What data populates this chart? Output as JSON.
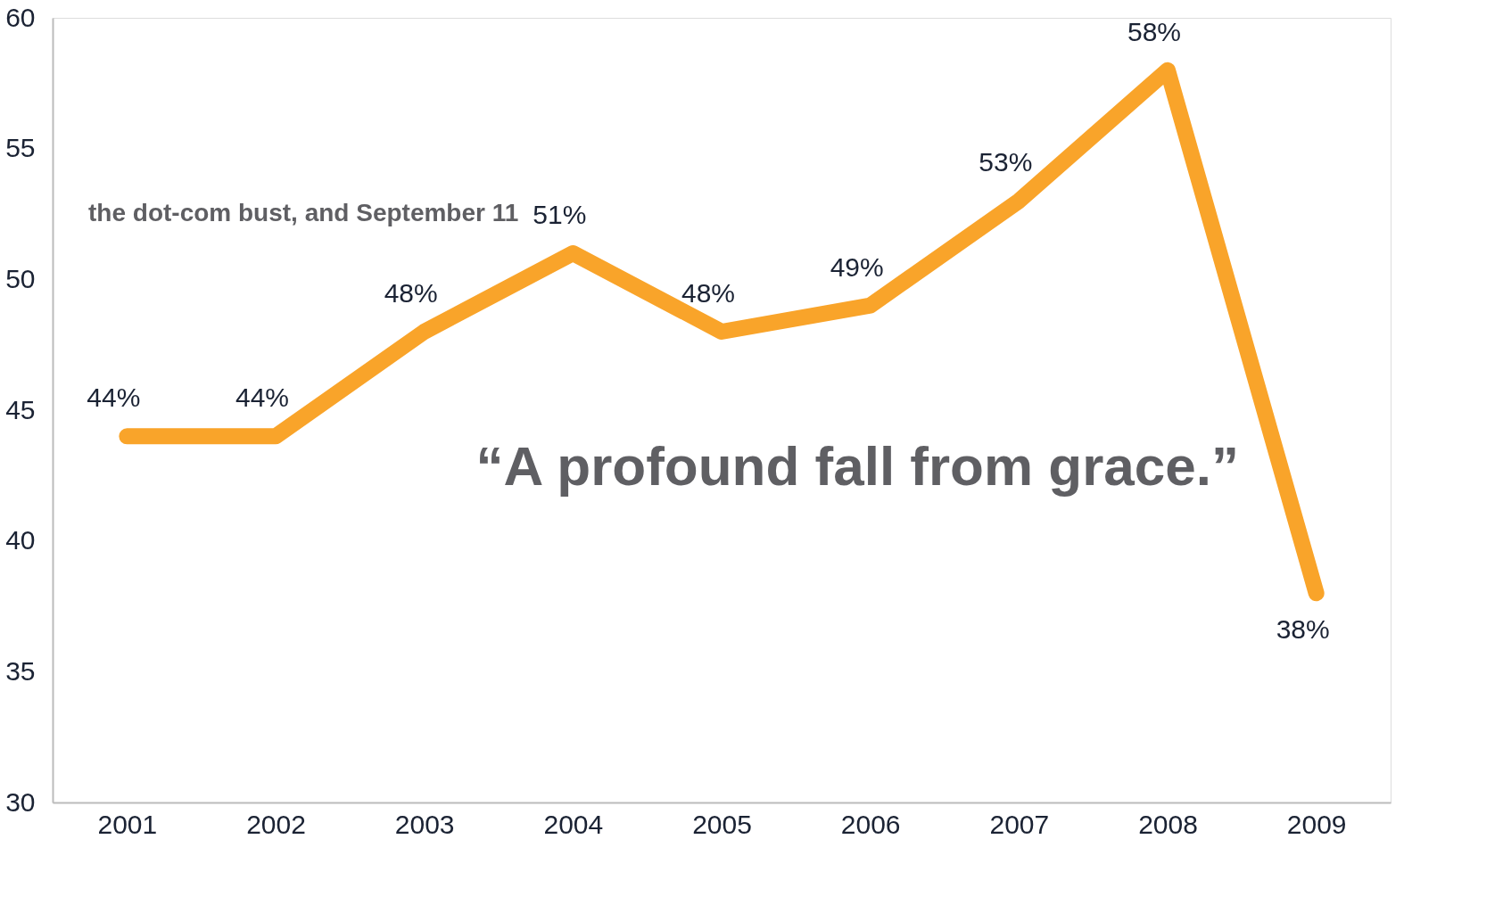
{
  "chart_data": {
    "type": "line",
    "categories": [
      "2001",
      "2002",
      "2003",
      "2004",
      "2005",
      "2006",
      "2007",
      "2008",
      "2009"
    ],
    "series": [
      {
        "color": "#f9a42a",
        "values": [
          44,
          44,
          48,
          51,
          48,
          49,
          53,
          58,
          38
        ],
        "value_labels": [
          "44%",
          "44%",
          "48%",
          "51%",
          "48%",
          "49%",
          "53%",
          "58%",
          "38%"
        ]
      }
    ],
    "ylim": [
      30,
      60
    ],
    "yticks": [
      30,
      35,
      40,
      45,
      50,
      55,
      60
    ],
    "grid": false,
    "annotations": [
      "the dot-com bust, and September 11",
      "“A profound fall from grace.”"
    ]
  }
}
